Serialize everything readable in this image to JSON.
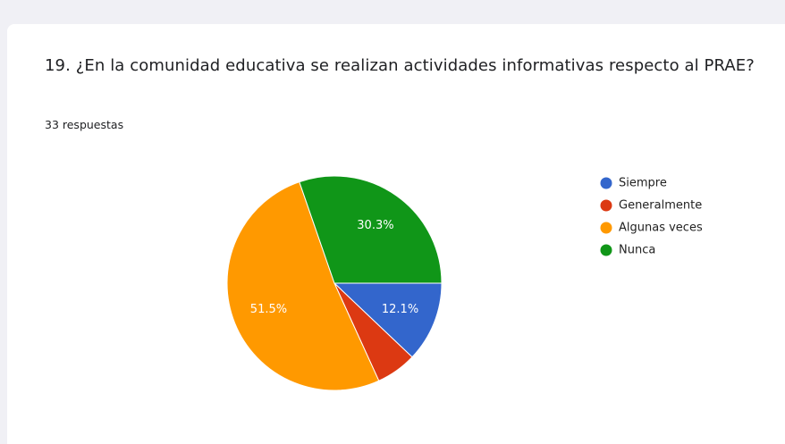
{
  "chart_data": {
    "type": "pie",
    "title": "19. ¿En la comunidad educativa se realizan actividades informativas respecto al PRAE?",
    "subtitle": "33 respuestas",
    "categories": [
      "Siempre",
      "Generalmente",
      "Algunas veces",
      "Nunca"
    ],
    "values": [
      12.1,
      6.1,
      51.5,
      30.3
    ],
    "value_labels": [
      "12.1%",
      null,
      "51.5%",
      "30.3%"
    ],
    "colors": [
      "#3366cc",
      "#dc3912",
      "#ff9900",
      "#109618"
    ],
    "legend": "right"
  }
}
